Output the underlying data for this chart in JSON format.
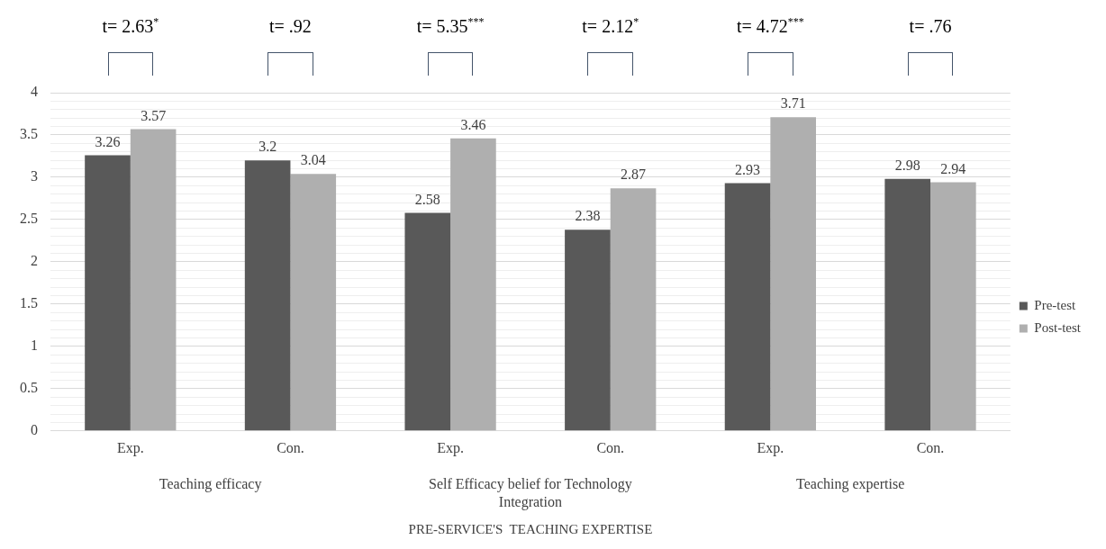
{
  "chart_data": {
    "type": "bar",
    "categories": [
      "Exp.",
      "Con.",
      "Exp.",
      "Con.",
      "Exp.",
      "Con."
    ],
    "series": [
      {
        "name": "Pre-test",
        "color": "#595959",
        "values": [
          3.26,
          3.2,
          2.58,
          2.38,
          2.93,
          2.98
        ]
      },
      {
        "name": "Post-test",
        "color": "#afafaf",
        "values": [
          3.57,
          3.04,
          3.46,
          2.87,
          3.71,
          2.94
        ]
      }
    ],
    "xlabel": "PRE-SERVICE'S  TEACHING EXPERTISE",
    "annotations": [
      "Teaching efficacy",
      "Self Efficacy belief for Technology Integration",
      "Teaching expertise",
      "t= 2.63$^{*}$",
      "t= .92",
      "t= 5.35$^{***}$",
      "t= 2.12$^{*}$",
      "t= 4.72$^{***}$",
      "t= .76"
    ],
    "ylim": [
      0,
      4
    ],
    "yticks": [
      0,
      {
        "value": 0.1,
        "label": null
      },
      {
        "value": 0.2,
        "label": null
      },
      {
        "value": 0.3,
        "label": null
      },
      {
        "value": 0.4,
        "label": null
      },
      0.5,
      {
        "value": 0.6,
        "label": null
      },
      {
        "value": 0.7,
        "label": null
      },
      {
        "value": 0.8,
        "label": null
      },
      {
        "value": 0.9,
        "label": null
      },
      1,
      {
        "value": 1.1,
        "label": null
      },
      {
        "value": 1.2,
        "label": null
      },
      {
        "value": 1.3,
        "label": null
      },
      {
        "value": 1.4,
        "label": null
      },
      1.5,
      {
        "value": 1.6,
        "label": null
      },
      {
        "value": 1.7,
        "label": null
      },
      {
        "value": 1.8,
        "label": null
      },
      {
        "value": 1.9,
        "label": null
      },
      2,
      {
        "value": 2.1,
        "label": null
      },
      {
        "value": 2.2,
        "label": null
      },
      {
        "value": 2.3,
        "label": null
      },
      {
        "value": 2.4,
        "label": null
      },
      2.5,
      {
        "value": 2.6,
        "label": null
      },
      {
        "value": 2.7,
        "label": null
      },
      {
        "value": 2.8,
        "label": null
      },
      {
        "value": 2.9,
        "label": null
      },
      3,
      {
        "value": 3.1,
        "label": null
      },
      {
        "value": 3.2,
        "label": null
      },
      {
        "value": 3.3,
        "label": null
      },
      {
        "value": 3.4,
        "label": null
      },
      3.5,
      {
        "value": 3.6,
        "label": null
      },
      {
        "value": 3.7,
        "label": null
      },
      {
        "value": 3.8,
        "label": null
      },
      {
        "value": 3.9,
        "label": null
      },
      4
    ],
    "grid": "y",
    "legend": "right",
    "data_labels": true
  }
}
